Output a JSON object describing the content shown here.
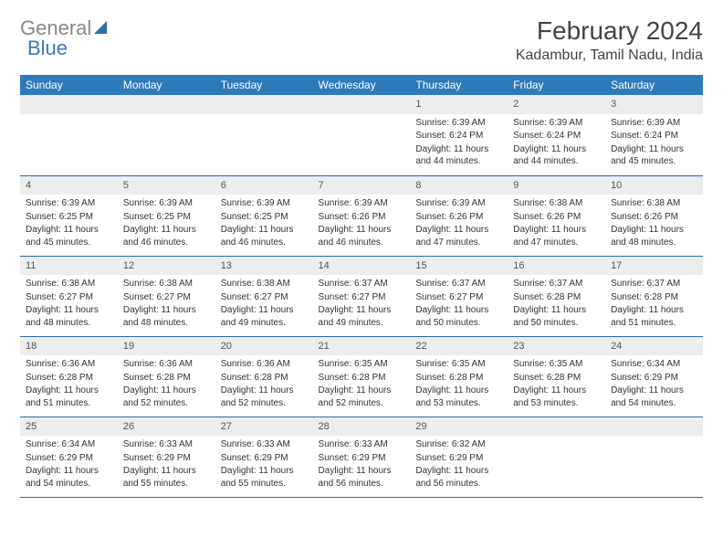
{
  "logo": {
    "part1": "General",
    "part2": "Blue"
  },
  "title": "February 2024",
  "location": "Kadambur, Tamil Nadu, India",
  "colors": {
    "header_bg": "#2f7ab8",
    "header_fg": "#ffffff",
    "daynum_bg": "#eceded",
    "row_border": "#2f6a9e",
    "logo_blue": "#3a7ab8",
    "logo_gray": "#888888",
    "text": "#333333",
    "bg": "#ffffff"
  },
  "day_headers": [
    "Sunday",
    "Monday",
    "Tuesday",
    "Wednesday",
    "Thursday",
    "Friday",
    "Saturday"
  ],
  "weeks": [
    [
      {
        "n": ""
      },
      {
        "n": ""
      },
      {
        "n": ""
      },
      {
        "n": ""
      },
      {
        "n": "1",
        "sr": "6:39 AM",
        "ss": "6:24 PM",
        "dl": "11 hours and 44 minutes."
      },
      {
        "n": "2",
        "sr": "6:39 AM",
        "ss": "6:24 PM",
        "dl": "11 hours and 44 minutes."
      },
      {
        "n": "3",
        "sr": "6:39 AM",
        "ss": "6:24 PM",
        "dl": "11 hours and 45 minutes."
      }
    ],
    [
      {
        "n": "4",
        "sr": "6:39 AM",
        "ss": "6:25 PM",
        "dl": "11 hours and 45 minutes."
      },
      {
        "n": "5",
        "sr": "6:39 AM",
        "ss": "6:25 PM",
        "dl": "11 hours and 46 minutes."
      },
      {
        "n": "6",
        "sr": "6:39 AM",
        "ss": "6:25 PM",
        "dl": "11 hours and 46 minutes."
      },
      {
        "n": "7",
        "sr": "6:39 AM",
        "ss": "6:26 PM",
        "dl": "11 hours and 46 minutes."
      },
      {
        "n": "8",
        "sr": "6:39 AM",
        "ss": "6:26 PM",
        "dl": "11 hours and 47 minutes."
      },
      {
        "n": "9",
        "sr": "6:38 AM",
        "ss": "6:26 PM",
        "dl": "11 hours and 47 minutes."
      },
      {
        "n": "10",
        "sr": "6:38 AM",
        "ss": "6:26 PM",
        "dl": "11 hours and 48 minutes."
      }
    ],
    [
      {
        "n": "11",
        "sr": "6:38 AM",
        "ss": "6:27 PM",
        "dl": "11 hours and 48 minutes."
      },
      {
        "n": "12",
        "sr": "6:38 AM",
        "ss": "6:27 PM",
        "dl": "11 hours and 48 minutes."
      },
      {
        "n": "13",
        "sr": "6:38 AM",
        "ss": "6:27 PM",
        "dl": "11 hours and 49 minutes."
      },
      {
        "n": "14",
        "sr": "6:37 AM",
        "ss": "6:27 PM",
        "dl": "11 hours and 49 minutes."
      },
      {
        "n": "15",
        "sr": "6:37 AM",
        "ss": "6:27 PM",
        "dl": "11 hours and 50 minutes."
      },
      {
        "n": "16",
        "sr": "6:37 AM",
        "ss": "6:28 PM",
        "dl": "11 hours and 50 minutes."
      },
      {
        "n": "17",
        "sr": "6:37 AM",
        "ss": "6:28 PM",
        "dl": "11 hours and 51 minutes."
      }
    ],
    [
      {
        "n": "18",
        "sr": "6:36 AM",
        "ss": "6:28 PM",
        "dl": "11 hours and 51 minutes."
      },
      {
        "n": "19",
        "sr": "6:36 AM",
        "ss": "6:28 PM",
        "dl": "11 hours and 52 minutes."
      },
      {
        "n": "20",
        "sr": "6:36 AM",
        "ss": "6:28 PM",
        "dl": "11 hours and 52 minutes."
      },
      {
        "n": "21",
        "sr": "6:35 AM",
        "ss": "6:28 PM",
        "dl": "11 hours and 52 minutes."
      },
      {
        "n": "22",
        "sr": "6:35 AM",
        "ss": "6:28 PM",
        "dl": "11 hours and 53 minutes."
      },
      {
        "n": "23",
        "sr": "6:35 AM",
        "ss": "6:28 PM",
        "dl": "11 hours and 53 minutes."
      },
      {
        "n": "24",
        "sr": "6:34 AM",
        "ss": "6:29 PM",
        "dl": "11 hours and 54 minutes."
      }
    ],
    [
      {
        "n": "25",
        "sr": "6:34 AM",
        "ss": "6:29 PM",
        "dl": "11 hours and 54 minutes."
      },
      {
        "n": "26",
        "sr": "6:33 AM",
        "ss": "6:29 PM",
        "dl": "11 hours and 55 minutes."
      },
      {
        "n": "27",
        "sr": "6:33 AM",
        "ss": "6:29 PM",
        "dl": "11 hours and 55 minutes."
      },
      {
        "n": "28",
        "sr": "6:33 AM",
        "ss": "6:29 PM",
        "dl": "11 hours and 56 minutes."
      },
      {
        "n": "29",
        "sr": "6:32 AM",
        "ss": "6:29 PM",
        "dl": "11 hours and 56 minutes."
      },
      {
        "n": ""
      },
      {
        "n": ""
      }
    ]
  ],
  "labels": {
    "sunrise": "Sunrise: ",
    "sunset": "Sunset: ",
    "daylight": "Daylight: "
  }
}
